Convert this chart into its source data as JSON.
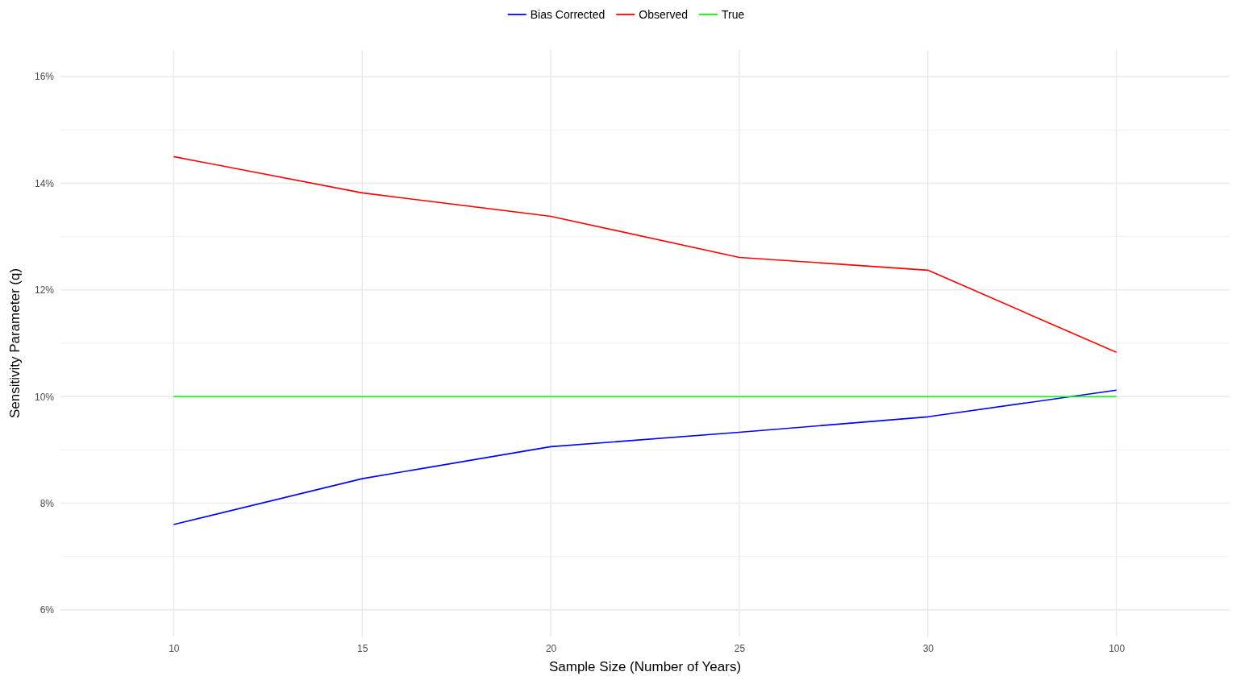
{
  "chart_data": {
    "type": "line",
    "xlabel": "Sample Size (Number of Years)",
    "ylabel": "Sensitivity Parameter (q)",
    "categories": [
      "10",
      "15",
      "20",
      "25",
      "30",
      "100"
    ],
    "series": [
      {
        "name": "Bias Corrected",
        "color": "#0000ff",
        "values": [
          7.6,
          8.46,
          9.06,
          9.33,
          9.62,
          10.12
        ]
      },
      {
        "name": "Observed",
        "color": "#ff0000",
        "values": [
          14.5,
          13.82,
          13.38,
          12.61,
          12.37,
          10.83
        ]
      },
      {
        "name": "True",
        "color": "#00ff00",
        "values": [
          10,
          10,
          10,
          10,
          10,
          10
        ]
      }
    ],
    "ylim": [
      5.5,
      16.5
    ],
    "yticks": [
      {
        "value": 6,
        "label": "6%"
      },
      {
        "value": 7,
        "label": null
      },
      {
        "value": 8,
        "label": "8%"
      },
      {
        "value": 9,
        "label": null
      },
      {
        "value": 10,
        "label": "10%"
      },
      {
        "value": 11,
        "label": null
      },
      {
        "value": 12,
        "label": "12%"
      },
      {
        "value": 13,
        "label": null
      },
      {
        "value": 14,
        "label": "14%"
      },
      {
        "value": 15,
        "label": null
      },
      {
        "value": 16,
        "label": "16%"
      }
    ],
    "grid": true,
    "legend": "top",
    "marker": "none",
    "line_style": "solid"
  }
}
